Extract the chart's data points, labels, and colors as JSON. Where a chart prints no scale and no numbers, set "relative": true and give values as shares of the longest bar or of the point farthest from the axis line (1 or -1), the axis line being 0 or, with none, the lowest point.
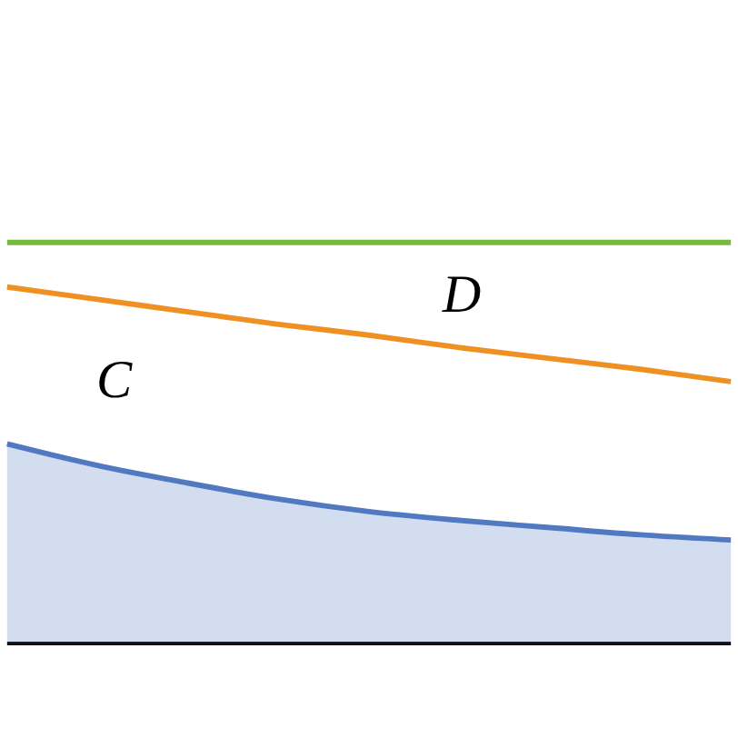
{
  "chart_data": {
    "type": "line",
    "relative": true,
    "categories": [
      null,
      null,
      null,
      null,
      null,
      null,
      null,
      null,
      null
    ],
    "series": [
      {
        "color": "#78b83e",
        "values": [
          1,
          1,
          1,
          1,
          1,
          1,
          1,
          1,
          1
        ]
      },
      {
        "type": "line",
        "color": "#ef9122",
        "values": [
          0.889,
          0.858,
          0.827,
          0.796,
          0.769,
          0.738,
          0.711,
          0.684,
          0.653
        ]
      },
      {
        "type": "area",
        "color": "#5079c2",
        "values": [
          0.498,
          0.444,
          0.4,
          0.36,
          0.329,
          0.307,
          0.289,
          0.271,
          0.258
        ]
      }
    ],
    "annotations": [
      "C",
      "D"
    ],
    "grid": false
  }
}
